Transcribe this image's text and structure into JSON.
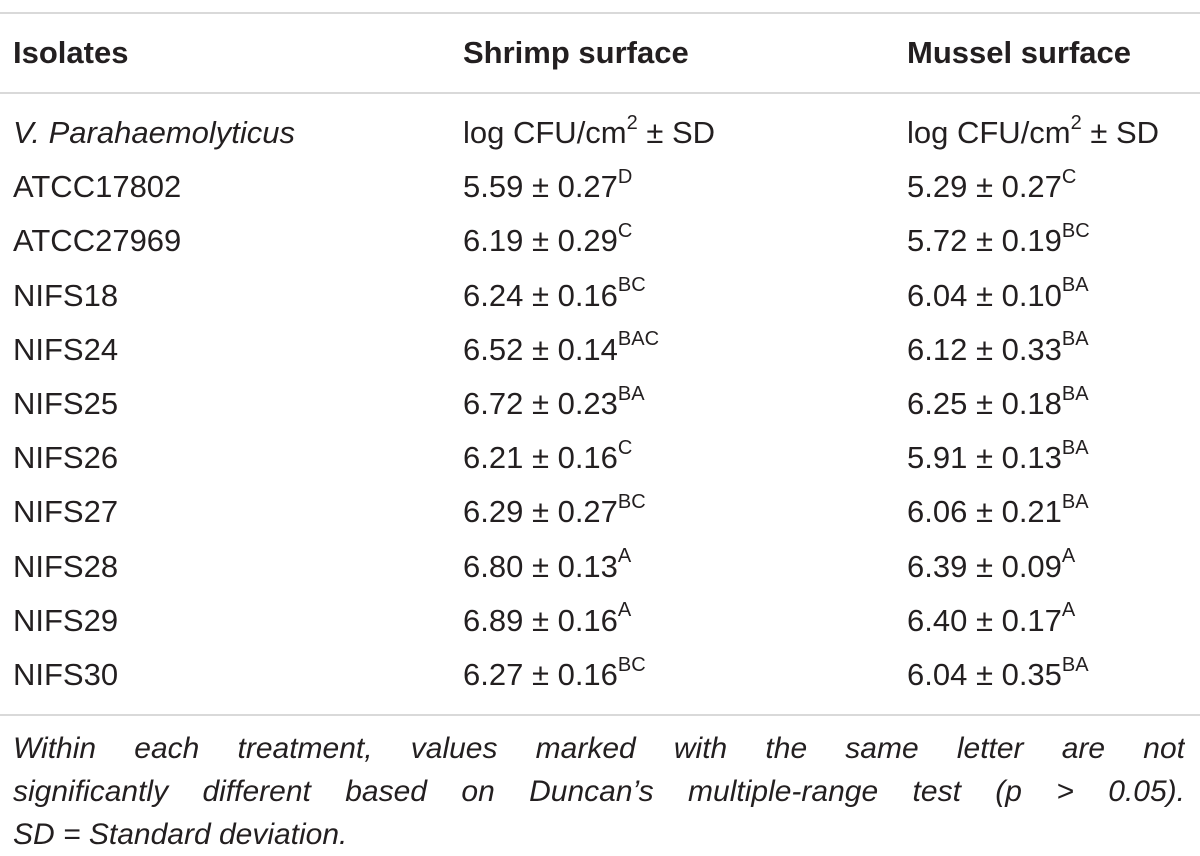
{
  "table": {
    "headers": [
      "Isolates",
      "Shrimp surface",
      "Mussel surface"
    ],
    "unit_row": {
      "isolate": "V. Parahaemolyticus",
      "shrimp_unit": "log CFU/cm",
      "shrimp_unit_sup": "2",
      "shrimp_unit_tail": " ± SD",
      "mussel_unit": "log CFU/cm",
      "mussel_unit_sup": "2",
      "mussel_unit_tail": " ± SD"
    },
    "rows": [
      {
        "isolate": "ATCC17802",
        "shrimp": "5.59 ± 0.27",
        "shrimp_sig": "D",
        "mussel": "5.29 ± 0.27",
        "mussel_sig": "C"
      },
      {
        "isolate": "ATCC27969",
        "shrimp": "6.19 ± 0.29",
        "shrimp_sig": "C",
        "mussel": "5.72 ± 0.19",
        "mussel_sig": "BC"
      },
      {
        "isolate": "NIFS18",
        "shrimp": "6.24 ± 0.16",
        "shrimp_sig": "BC",
        "mussel": "6.04 ± 0.10",
        "mussel_sig": "BA"
      },
      {
        "isolate": "NIFS24",
        "shrimp": "6.52 ± 0.14",
        "shrimp_sig": "BAC",
        "mussel": "6.12 ± 0.33",
        "mussel_sig": "BA"
      },
      {
        "isolate": "NIFS25",
        "shrimp": "6.72 ± 0.23",
        "shrimp_sig": "BA",
        "mussel": "6.25 ± 0.18",
        "mussel_sig": "BA"
      },
      {
        "isolate": "NIFS26",
        "shrimp": "6.21 ± 0.16",
        "shrimp_sig": "C",
        "mussel": "5.91 ± 0.13",
        "mussel_sig": "BA"
      },
      {
        "isolate": "NIFS27",
        "shrimp": "6.29 ± 0.27",
        "shrimp_sig": "BC",
        "mussel": "6.06 ± 0.21",
        "mussel_sig": "BA"
      },
      {
        "isolate": "NIFS28",
        "shrimp": "6.80 ± 0.13",
        "shrimp_sig": "A",
        "mussel": "6.39 ± 0.09",
        "mussel_sig": "A"
      },
      {
        "isolate": "NIFS29",
        "shrimp": "6.89 ± 0.16",
        "shrimp_sig": "A",
        "mussel": "6.40 ± 0.17",
        "mussel_sig": "A"
      },
      {
        "isolate": "NIFS30",
        "shrimp": "6.27 ± 0.16",
        "shrimp_sig": "BC",
        "mussel": "6.04 ± 0.35",
        "mussel_sig": "BA"
      }
    ]
  },
  "footnote": {
    "line1": "Within each treatment, values marked with the same letter are not",
    "line2": "significantly different based on Duncan’s multiple-range test (p > 0.05).",
    "line3": "SD = Standard deviation."
  }
}
